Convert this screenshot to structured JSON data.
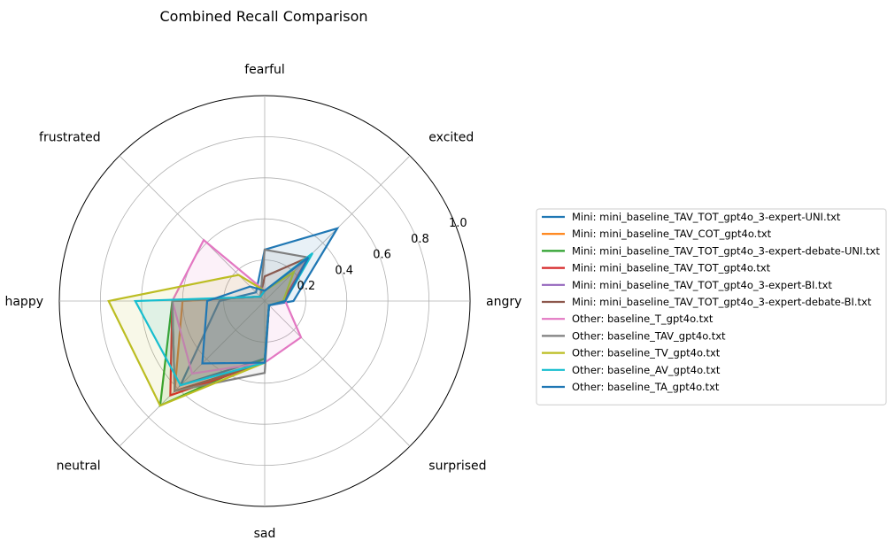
{
  "chart_data": {
    "type": "radar",
    "title": "Combined Recall Comparison",
    "categories": [
      "angry",
      "excited",
      "fearful",
      "frustrated",
      "happy",
      "neutral",
      "sad",
      "surprised"
    ],
    "radial_ticks": [
      "0.2",
      "0.4",
      "0.6",
      "0.8",
      "1.0"
    ],
    "radial_tick_values": [
      0.2,
      0.4,
      0.6,
      0.8,
      1.0
    ],
    "rlim": [
      0,
      1
    ],
    "grid": true,
    "legend_position": "right",
    "series": [
      {
        "name": "Mini: mini_baseline_TAV_TOT_gpt4o_3-expert-UNI.txt",
        "color": "#1f77b4",
        "values": [
          0.14,
          0.5,
          0.25,
          0.06,
          0.22,
          0.58,
          0.28,
          0.03
        ]
      },
      {
        "name": "Mini: mini_baseline_TAV_COT_gpt4o.txt",
        "color": "#ff7f0e",
        "values": [
          0.09,
          0.3,
          0.05,
          0.03,
          0.4,
          0.62,
          0.3,
          0.03
        ]
      },
      {
        "name": "Mini: mini_baseline_TAV_TOT_gpt4o_3-expert-debate-UNI.txt",
        "color": "#2ca02c",
        "values": [
          0.1,
          0.3,
          0.05,
          0.03,
          0.45,
          0.72,
          0.28,
          0.03
        ]
      },
      {
        "name": "Mini: mini_baseline_TAV_TOT_gpt4o.txt",
        "color": "#d62728",
        "values": [
          0.09,
          0.3,
          0.05,
          0.03,
          0.45,
          0.65,
          0.3,
          0.03
        ]
      },
      {
        "name": "Mini: mini_baseline_TAV_TOT_gpt4o_3-expert-BI.txt",
        "color": "#9467bd",
        "values": [
          0.1,
          0.3,
          0.05,
          0.03,
          0.45,
          0.62,
          0.3,
          0.03
        ]
      },
      {
        "name": "Mini: mini_baseline_TAV_TOT_gpt4o_3-expert-debate-BI.txt",
        "color": "#8c564b",
        "values": [
          0.1,
          0.3,
          0.12,
          0.03,
          0.45,
          0.62,
          0.3,
          0.03
        ]
      },
      {
        "name": "Other: baseline_T_gpt4o.txt",
        "color": "#e377c2",
        "values": [
          0.1,
          0.3,
          0.05,
          0.42,
          0.45,
          0.5,
          0.3,
          0.25
        ]
      },
      {
        "name": "Other: baseline_TAV_gpt4o.txt",
        "color": "#7f7f7f",
        "values": [
          0.1,
          0.3,
          0.25,
          0.03,
          0.45,
          0.62,
          0.35,
          0.03
        ]
      },
      {
        "name": "Other: baseline_TV_gpt4o.txt",
        "color": "#bcbd22",
        "values": [
          0.09,
          0.2,
          0.05,
          0.18,
          0.76,
          0.72,
          0.3,
          0.03
        ]
      },
      {
        "name": "Other: baseline_AV_gpt4o.txt",
        "color": "#17becf",
        "values": [
          0.1,
          0.33,
          0.05,
          0.03,
          0.63,
          0.58,
          0.3,
          0.03
        ]
      },
      {
        "name": "Other: baseline_TA_gpt4o.txt",
        "color": "#1f77b4",
        "values": [
          0.1,
          0.3,
          0.05,
          0.1,
          0.28,
          0.43,
          0.3,
          0.03
        ]
      }
    ]
  }
}
